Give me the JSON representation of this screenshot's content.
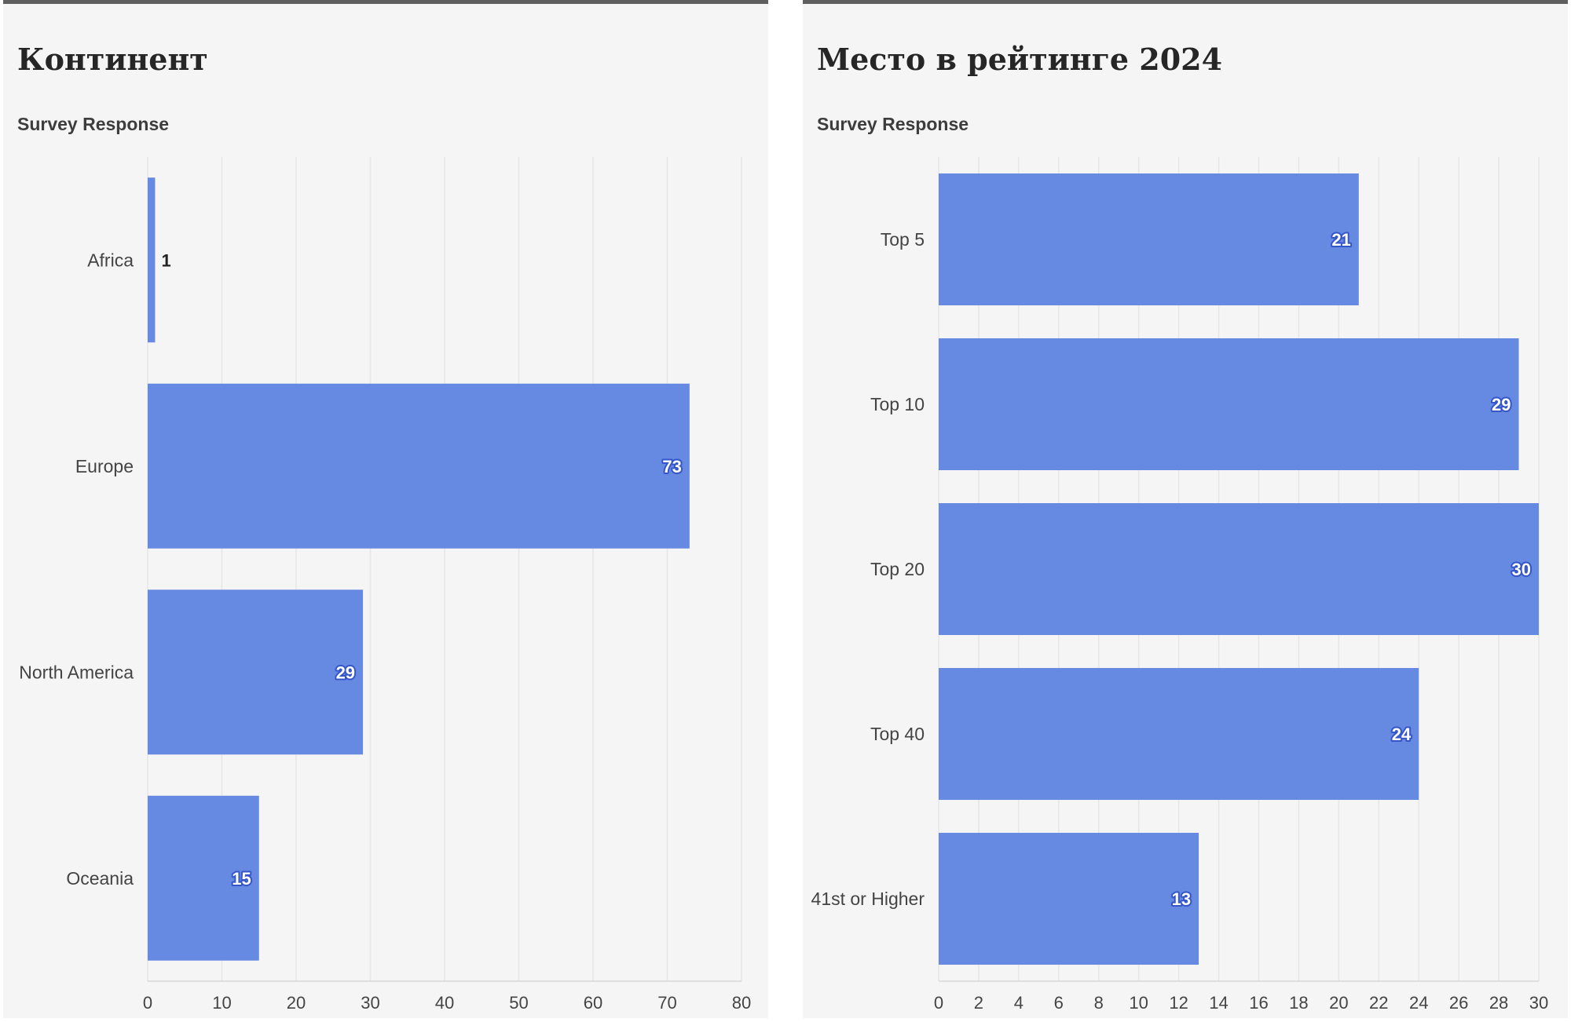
{
  "chart_data": [
    {
      "type": "bar",
      "orientation": "horizontal",
      "title": "Континент",
      "subtitle": "Survey Response",
      "categories": [
        "Africa",
        "Europe",
        "North America",
        "Oceania"
      ],
      "values": [
        1,
        73,
        29,
        15
      ],
      "xlim": [
        0,
        80
      ],
      "xticks": [
        0,
        10,
        20,
        30,
        40,
        50,
        60,
        70,
        80
      ],
      "grid": true,
      "bar_color": "#6689e2"
    },
    {
      "type": "bar",
      "orientation": "horizontal",
      "title": "Место в рейтинге 2024",
      "subtitle": "Survey Response",
      "categories": [
        "Top 5",
        "Top 10",
        "Top 20",
        "Top 40",
        "41st or Higher"
      ],
      "values": [
        21,
        29,
        30,
        24,
        13
      ],
      "xlim": [
        0,
        30
      ],
      "xticks": [
        0,
        2,
        4,
        6,
        8,
        10,
        12,
        14,
        16,
        18,
        20,
        22,
        24,
        26,
        28,
        30
      ],
      "grid": true,
      "bar_color": "#6689e2"
    }
  ]
}
